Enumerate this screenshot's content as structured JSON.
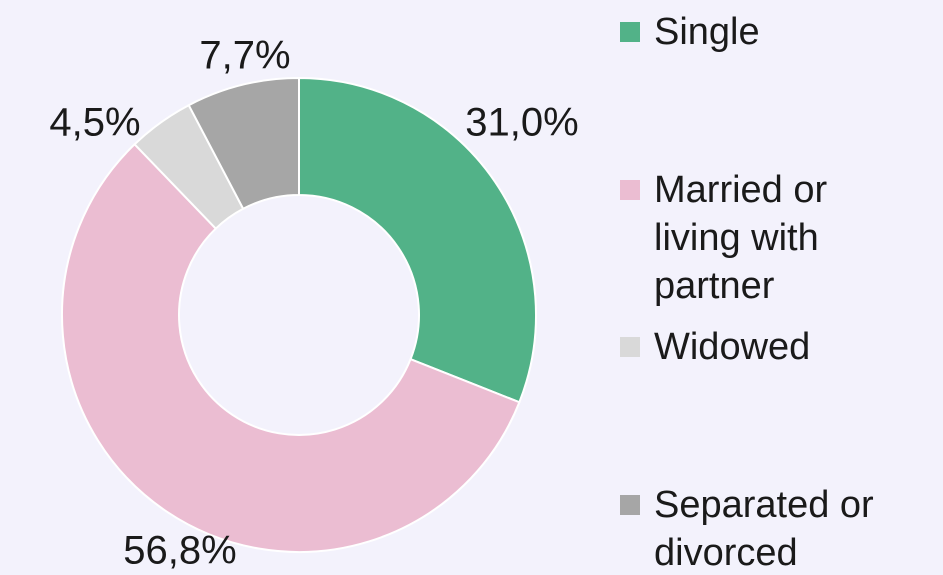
{
  "chart_data": {
    "type": "donut",
    "categories": [
      "Single",
      "Married or living with partner",
      "Widowed",
      "Separated or divorced"
    ],
    "values": [
      31.0,
      56.8,
      4.5,
      7.7
    ],
    "value_labels": [
      "31,0%",
      "56,8%",
      "4,5%",
      "7,7%"
    ],
    "colors": [
      "#52b288",
      "#ebbdd2",
      "#d9d9d9",
      "#a6a6a6"
    ],
    "legend": "right"
  }
}
